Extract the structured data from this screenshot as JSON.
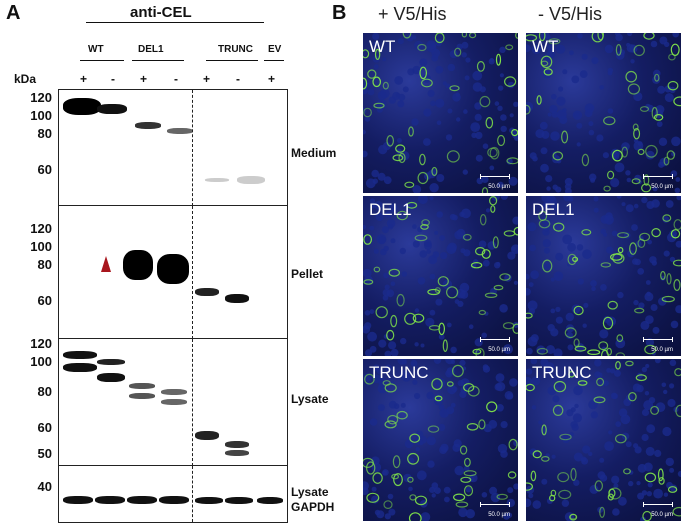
{
  "panel_a": {
    "letter": "A",
    "antibody": "anti-CEL",
    "groups": [
      {
        "name": "WT",
        "lanes": [
          "+",
          "-"
        ]
      },
      {
        "name": "DEL1",
        "lanes": [
          "+",
          "-"
        ]
      },
      {
        "name": "TRUNC",
        "lanes": [
          "+",
          "-"
        ]
      },
      {
        "name": "EV",
        "lanes": [
          "+"
        ]
      }
    ],
    "kda_label": "kDa",
    "blots": [
      {
        "label": "Medium",
        "ticks": [
          "120",
          "100",
          "80",
          "60"
        ]
      },
      {
        "label": "Pellet",
        "ticks": [
          "120",
          "100",
          "80",
          "60"
        ]
      },
      {
        "label": "Lysate",
        "ticks": [
          "120",
          "100",
          "80",
          "60",
          "50"
        ]
      },
      {
        "label": "Lysate\nGAPDH",
        "ticks": [
          "40"
        ]
      }
    ],
    "lysate_gapdh_line1": "Lysate",
    "lysate_gapdh_line2": "GAPDH"
  },
  "panel_b": {
    "letter": "B",
    "columns": [
      "+ V5/His",
      "- V5/His"
    ],
    "rows": [
      "WT",
      "DEL1",
      "TRUNC"
    ],
    "scale_text": "50.0 µm",
    "colors": {
      "nuclei": "#1a2a8c",
      "cel": "#7ee04a"
    }
  }
}
